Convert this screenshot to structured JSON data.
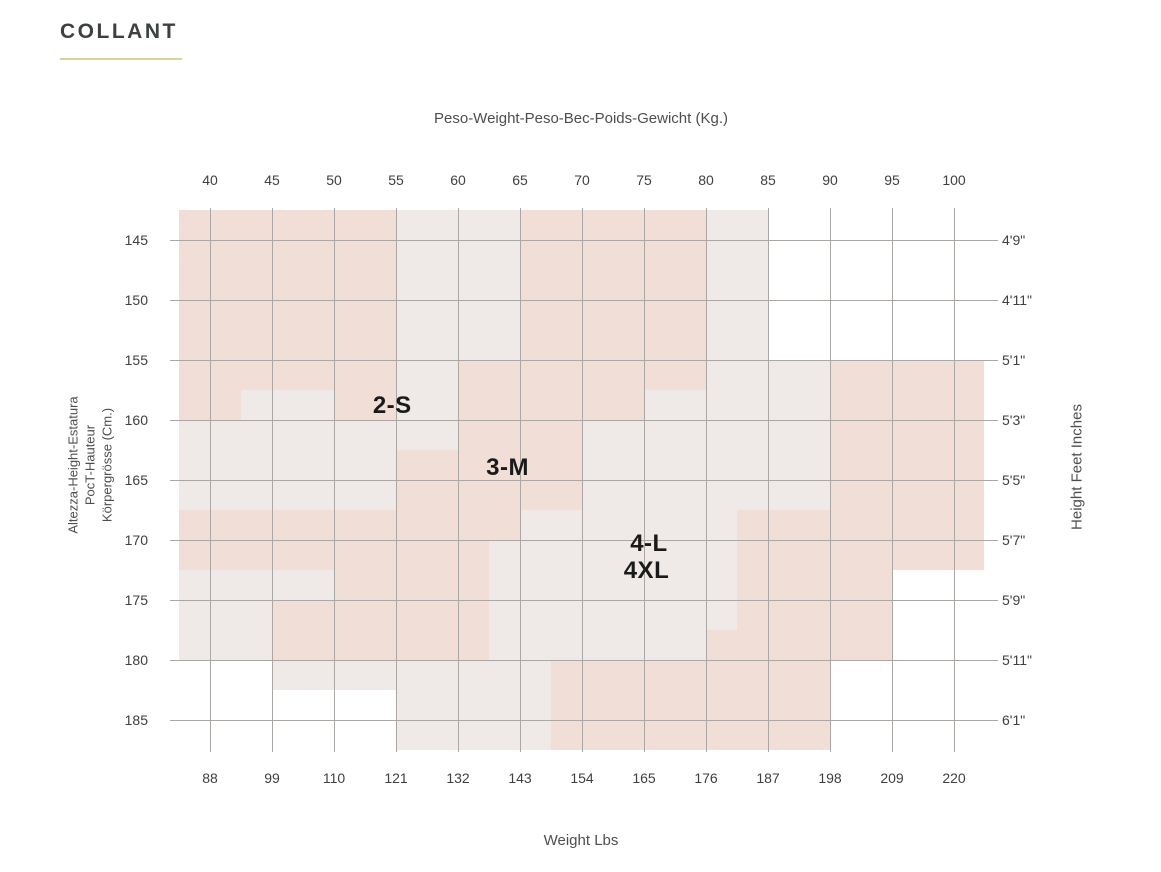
{
  "title": {
    "text": "COLLANT"
  },
  "axes": {
    "top": {
      "label": "Peso-Weight-Peso-Bec-Poids-Gewicht (Kg.)"
    },
    "bottom": {
      "label": "Weight Lbs"
    },
    "left": {
      "label_lines": [
        "Altezza-Height-Estatura",
        "PocT-Hauteur",
        "Körpergrösse (Cm.)"
      ]
    },
    "right": {
      "label": "Height Feet Inches"
    }
  },
  "colors": {
    "title_text": "#3c413e",
    "accent_underline": "#d9d1a0",
    "region_pink": "#f1ded7",
    "region_light": "#efeae7",
    "grid_line": "#aba7a5",
    "tick_text": "#3f3f3f",
    "axis_title_text": "#4e4e4e",
    "size_label_text": "#1a1a1a",
    "background": "#ffffff"
  },
  "chart_data": {
    "type": "heatmap",
    "title": "COLLANT",
    "description": "Tights size chart: shaded zones on a weight vs height grid. Top axis weight in kg, bottom axis weight in lbs, left axis height in cm, right axis height in feet-inches.",
    "grid": true,
    "x_axis": {
      "label_top": "Peso-Weight-Peso-Bec-Poids-Gewicht (Kg.)",
      "kg": [
        40,
        45,
        50,
        55,
        60,
        65,
        70,
        75,
        80,
        85,
        90,
        95,
        100
      ],
      "label_bottom": "Weight Lbs",
      "lbs": [
        88,
        99,
        110,
        121,
        132,
        143,
        154,
        165,
        176,
        187,
        198,
        209,
        220
      ],
      "range_kg": [
        37.5,
        102.5
      ]
    },
    "y_axis": {
      "label_left_lines": [
        "Altezza-Height-Estatura",
        "PocT-Hauteur",
        "Körpergrösse (Cm.)"
      ],
      "cm": [
        145,
        150,
        155,
        160,
        165,
        170,
        175,
        180,
        185
      ],
      "label_right": "Height Feet Inches",
      "feet_inches": [
        "4'9\"",
        "4'11\"",
        "5'1\"",
        "5'3\"",
        "5'5\"",
        "5'7\"",
        "5'9\"",
        "5'11\"",
        "6'1\""
      ],
      "range_cm": [
        142.5,
        187.5
      ]
    },
    "size_labels": [
      {
        "text": "2-S",
        "kg": 54.7,
        "cm": 158.8
      },
      {
        "text": "3-M",
        "kg": 64.0,
        "cm": 164.0
      },
      {
        "text": "4-L",
        "kg": 75.4,
        "cm": 170.3
      },
      {
        "text": "4XL",
        "kg": 75.2,
        "cm": 172.6
      }
    ],
    "regions": [
      {
        "tone": "pink",
        "kg": [
          37.5,
          55
        ],
        "cm": [
          142.5,
          155
        ]
      },
      {
        "tone": "pink",
        "kg": [
          65,
          80
        ],
        "cm": [
          142.5,
          155
        ]
      },
      {
        "tone": "pink",
        "kg": [
          37.5,
          55
        ],
        "cm": [
          155,
          157.5
        ]
      },
      {
        "tone": "pink",
        "kg": [
          37.5,
          42.5
        ],
        "cm": [
          157.5,
          160
        ]
      },
      {
        "tone": "pink",
        "kg": [
          50,
          55
        ],
        "cm": [
          157.5,
          160
        ]
      },
      {
        "tone": "pink",
        "kg": [
          60,
          80
        ],
        "cm": [
          155,
          157.5
        ]
      },
      {
        "tone": "pink",
        "kg": [
          60,
          75
        ],
        "cm": [
          157.5,
          160
        ]
      },
      {
        "tone": "pink",
        "kg": [
          95,
          102.5
        ],
        "cm": [
          155,
          172.5
        ]
      },
      {
        "tone": "pink",
        "kg": [
          90,
          95
        ],
        "cm": [
          155,
          180
        ]
      },
      {
        "tone": "pink",
        "kg": [
          60,
          70
        ],
        "cm": [
          160,
          165
        ]
      },
      {
        "tone": "pink",
        "kg": [
          55,
          60
        ],
        "cm": [
          162.5,
          180
        ]
      },
      {
        "tone": "pink",
        "kg": [
          60,
          65
        ],
        "cm": [
          165,
          170
        ]
      },
      {
        "tone": "pink",
        "kg": [
          60,
          62.5
        ],
        "cm": [
          170,
          180
        ]
      },
      {
        "tone": "pink",
        "kg": [
          65,
          70
        ],
        "cm": [
          165,
          167.5
        ]
      },
      {
        "tone": "pink",
        "kg": [
          37.5,
          55
        ],
        "cm": [
          167.5,
          172.5
        ]
      },
      {
        "tone": "pink",
        "kg": [
          50,
          55
        ],
        "cm": [
          172.5,
          180
        ]
      },
      {
        "tone": "pink",
        "kg": [
          45,
          50
        ],
        "cm": [
          175,
          180
        ]
      },
      {
        "tone": "pink",
        "kg": [
          82.5,
          90
        ],
        "cm": [
          167.5,
          187.5
        ]
      },
      {
        "tone": "pink",
        "kg": [
          80,
          82.5
        ],
        "cm": [
          177.5,
          187.5
        ]
      },
      {
        "tone": "pink",
        "kg": [
          67.5,
          82.5
        ],
        "cm": [
          180,
          187.5
        ]
      },
      {
        "tone": "light",
        "kg": [
          55,
          65
        ],
        "cm": [
          142.5,
          155
        ]
      },
      {
        "tone": "light",
        "kg": [
          80,
          85
        ],
        "cm": [
          142.5,
          155
        ]
      },
      {
        "tone": "light",
        "kg": [
          42.5,
          50
        ],
        "cm": [
          157.5,
          160
        ]
      },
      {
        "tone": "light",
        "kg": [
          55,
          60
        ],
        "cm": [
          155,
          162.5
        ]
      },
      {
        "tone": "light",
        "kg": [
          37.5,
          55
        ],
        "cm": [
          160,
          165
        ]
      },
      {
        "tone": "light",
        "kg": [
          37.5,
          55
        ],
        "cm": [
          165,
          167.5
        ]
      },
      {
        "tone": "light",
        "kg": [
          70,
          80
        ],
        "cm": [
          160,
          167.5
        ]
      },
      {
        "tone": "light",
        "kg": [
          75,
          80
        ],
        "cm": [
          157.5,
          160
        ]
      },
      {
        "tone": "light",
        "kg": [
          80,
          90
        ],
        "cm": [
          155,
          167.5
        ]
      },
      {
        "tone": "light",
        "kg": [
          65,
          82.5
        ],
        "cm": [
          167.5,
          177.5
        ]
      },
      {
        "tone": "light",
        "kg": [
          65,
          80
        ],
        "cm": [
          177.5,
          180
        ]
      },
      {
        "tone": "light",
        "kg": [
          62.5,
          65
        ],
        "cm": [
          170,
          180
        ]
      },
      {
        "tone": "light",
        "kg": [
          37.5,
          50
        ],
        "cm": [
          172.5,
          175
        ]
      },
      {
        "tone": "light",
        "kg": [
          37.5,
          45
        ],
        "cm": [
          175,
          180
        ]
      },
      {
        "tone": "light",
        "kg": [
          45,
          55
        ],
        "cm": [
          180,
          182.5
        ]
      },
      {
        "tone": "light",
        "kg": [
          55,
          67.5
        ],
        "cm": [
          180,
          187.5
        ]
      }
    ]
  }
}
